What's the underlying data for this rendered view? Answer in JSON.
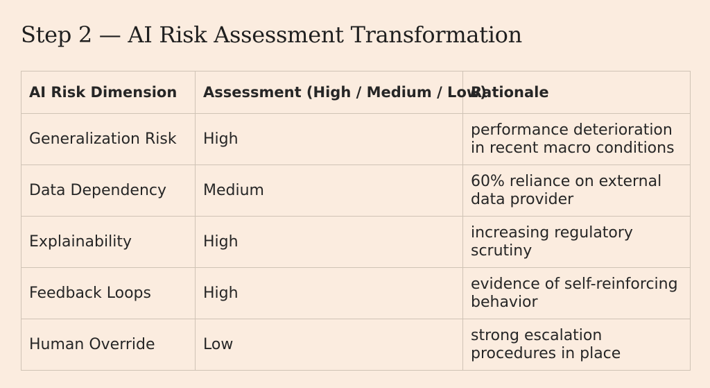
{
  "title": "Step 2 — AI Risk Assessment Transformation",
  "table": {
    "headers": [
      "AI Risk Dimension",
      "Assessment (High / Medium / Low)",
      "Rationale"
    ],
    "rows": [
      {
        "dimension": "Generalization Risk",
        "assessment": "High",
        "rationale": "performance deterioration in recent macro conditions"
      },
      {
        "dimension": "Data Dependency",
        "assessment": "Medium",
        "rationale": "60% reliance on external data provider"
      },
      {
        "dimension": "Explainability",
        "assessment": "High",
        "rationale": "increasing regulatory scrutiny"
      },
      {
        "dimension": "Feedback Loops",
        "assessment": "High",
        "rationale": "evidence of self-reinforcing behavior"
      },
      {
        "dimension": "Human Override",
        "assessment": "Low",
        "rationale": "strong escalation procedures in place"
      }
    ]
  },
  "colors": {
    "background": "#fbecdf",
    "border": "#cfc3b5",
    "text": "#262626"
  }
}
